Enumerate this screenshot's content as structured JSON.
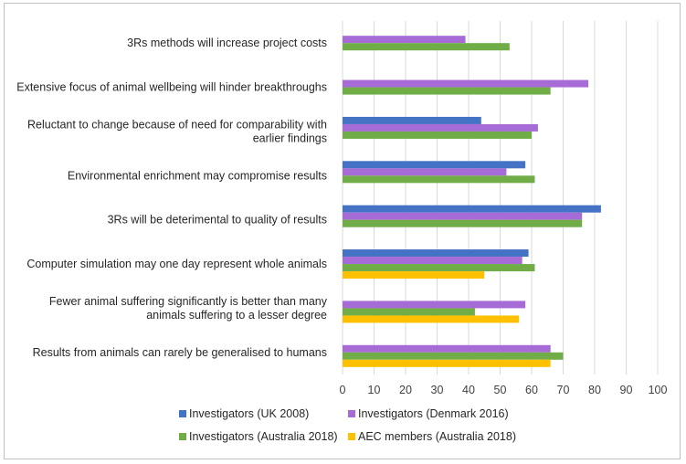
{
  "chart_data": {
    "type": "bar",
    "orientation": "horizontal",
    "title": "",
    "xlabel": "",
    "ylabel": "",
    "xlim": [
      0,
      100
    ],
    "xticks": [
      0,
      10,
      20,
      30,
      40,
      50,
      60,
      70,
      80,
      90,
      100
    ],
    "grid": true,
    "legend_position": "bottom",
    "categories": [
      [
        "3Rs methods will increase project costs"
      ],
      [
        "Extensive focus of animal wellbeing will hinder breakthroughs"
      ],
      [
        "Reluctant to change because of need for comparability with",
        "earlier findings"
      ],
      [
        "Environmental enrichment may compromise results"
      ],
      [
        "3Rs will be deterimental to quality of results"
      ],
      [
        "Computer simulation may one day represent whole animals"
      ],
      [
        "Fewer animal suffering significantly is better than many",
        "animals suffering to a lesser degree"
      ],
      [
        "Results from animals can rarely be generalised to humans"
      ]
    ],
    "series": [
      {
        "name": "Investigators (UK 2008)",
        "color": "#4472c4",
        "values": [
          null,
          null,
          44,
          58,
          82,
          59,
          null,
          null
        ]
      },
      {
        "name": "Investigators (Denmark 2016)",
        "color": "#a66bd6",
        "values": [
          39,
          78,
          62,
          52,
          76,
          57,
          58,
          66
        ]
      },
      {
        "name": "Investigators (Australia 2018)",
        "color": "#70ad47",
        "values": [
          53,
          66,
          60,
          61,
          76,
          61,
          42,
          70
        ]
      },
      {
        "name": "AEC members (Australia 2018)",
        "color": "#ffc000",
        "values": [
          null,
          null,
          null,
          null,
          null,
          45,
          56,
          66
        ]
      }
    ]
  }
}
